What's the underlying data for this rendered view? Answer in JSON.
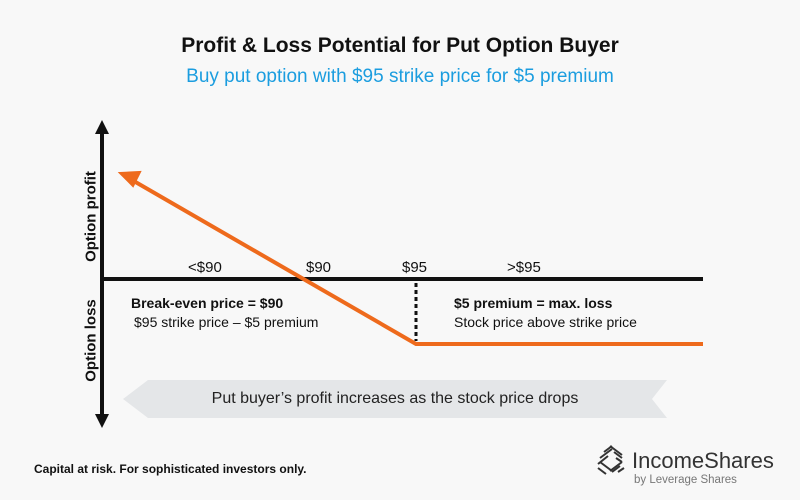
{
  "title": "Profit & Loss Potential for Put Option Buyer",
  "subtitle": "Buy put option with $95 strike price for $5 premium",
  "axes": {
    "y_top": "Option profit",
    "y_bottom": "Option loss"
  },
  "ticks": [
    "<$90",
    "$90",
    "$95",
    ">$95"
  ],
  "breakeven": {
    "heading": "Break-even price = $90",
    "detail": "$95 strike price – $5 premium"
  },
  "max_loss": {
    "heading": "$5 premium = max. loss",
    "detail": "Stock price above strike price"
  },
  "banner": "Put buyer’s profit increases as the stock price drops",
  "footer": "Capital at risk. For sophisticated investors only.",
  "brand": {
    "name": "IncomeShares",
    "tagline": "by Leverage Shares"
  },
  "colors": {
    "payoff_line": "#ee6a1c",
    "subtitle": "#1b9ddf",
    "banner": "#e4e6e8"
  },
  "chart_data": {
    "type": "line",
    "strike": 95,
    "premium": 5,
    "breakeven": 90
  }
}
